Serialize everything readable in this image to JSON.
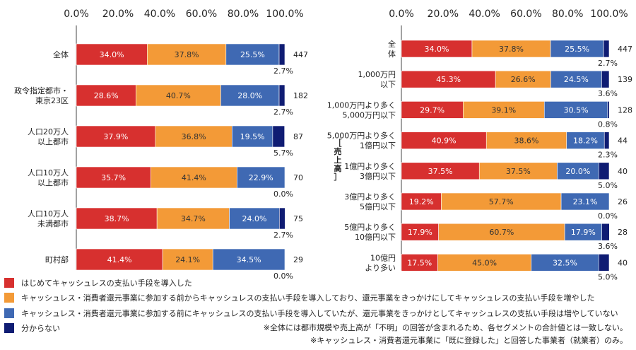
{
  "colors": {
    "red": "#D7302F",
    "orange": "#F39A37",
    "blue": "#3F69B3",
    "navy": "#0F1C73"
  },
  "legend": [
    {
      "label": "はじめてキャッシュレスの支払い手段を導入した",
      "color": "#D7302F"
    },
    {
      "label": "キャッシュレス・消費者還元事業に参加する前からキャッシュレスの支払い手段を導入しており、還元事業をきっかけにしてキャッシュレスの支払い手段を増やした",
      "color": "#F39A37"
    },
    {
      "label": "キャッシュレス・消費者還元事業に参加する前にキャッシュレスの支払い手段を導入していたが、還元事業をきっかけとしてキャッシュレスの支払い手段は増やしていない",
      "color": "#3F69B3"
    },
    {
      "label": "分からない",
      "color": "#0F1C73"
    }
  ],
  "notes": [
    "※全体には都市規模や売上高が「不明」の回答が含まれるため、各セグメントの合計値とは一致しない。",
    "※キャッシュレス・消費者還元事業に「既に登録した」と回答した事業者（就業者）のみ。"
  ],
  "chart_data": [
    {
      "type": "bar",
      "orientation": "horizontal",
      "stacked": true,
      "xlim": [
        0,
        100
      ],
      "ticks": [
        "0.0%",
        "20.0%",
        "40.0%",
        "60.0%",
        "80.0%",
        "100.0%"
      ],
      "categories": [
        [
          "全体"
        ],
        [
          "政令指定都市・",
          "東京23区"
        ],
        [
          "人口20万人",
          "以上都市"
        ],
        [
          "人口10万人",
          "以上都市"
        ],
        [
          "人口10万人",
          "未満都市"
        ],
        [
          "町村部"
        ]
      ],
      "series": [
        {
          "color": "#D7302F",
          "values": [
            34.0,
            28.6,
            37.9,
            35.7,
            38.7,
            41.4
          ]
        },
        {
          "color": "#F39A37",
          "values": [
            37.8,
            40.7,
            36.8,
            41.4,
            34.7,
            24.1
          ]
        },
        {
          "color": "#3F69B3",
          "values": [
            25.5,
            28.0,
            19.5,
            22.9,
            24.0,
            34.5
          ]
        },
        {
          "color": "#0F1C73",
          "values": [
            2.7,
            2.7,
            5.7,
            0.0,
            2.7,
            0.0
          ]
        }
      ],
      "n": [
        447,
        182,
        87,
        70,
        75,
        29
      ]
    },
    {
      "type": "bar",
      "orientation": "horizontal",
      "stacked": true,
      "xlim": [
        0,
        100
      ],
      "ticks": [
        "0.0%",
        "20.0%",
        "40.0%",
        "60.0%",
        "80.0%",
        "100.0%"
      ],
      "ylabel": "［売上高］",
      "categories": [
        [
          "全",
          "体"
        ],
        [
          "1,000万円",
          "以下"
        ],
        [
          "1,000万円より多く",
          "5,000万円以下"
        ],
        [
          "5,000万円より多く",
          "1億円以下"
        ],
        [
          "1億円より多く",
          "3億円以下"
        ],
        [
          "3億円より多く",
          "5億円以下"
        ],
        [
          "5億円より多く",
          "10億円以下"
        ],
        [
          "10億円",
          "より多い"
        ]
      ],
      "series": [
        {
          "color": "#D7302F",
          "values": [
            34.0,
            45.3,
            29.7,
            40.9,
            37.5,
            19.2,
            17.9,
            17.5
          ]
        },
        {
          "color": "#F39A37",
          "values": [
            37.8,
            26.6,
            39.1,
            38.6,
            37.5,
            57.7,
            60.7,
            45.0
          ]
        },
        {
          "color": "#3F69B3",
          "values": [
            25.5,
            24.5,
            30.5,
            18.2,
            20.0,
            23.1,
            17.9,
            32.5
          ]
        },
        {
          "color": "#0F1C73",
          "values": [
            2.7,
            3.6,
            0.8,
            2.3,
            5.0,
            0.0,
            3.6,
            5.0
          ]
        }
      ],
      "n": [
        447,
        139,
        128,
        44,
        40,
        26,
        28,
        40
      ]
    }
  ]
}
